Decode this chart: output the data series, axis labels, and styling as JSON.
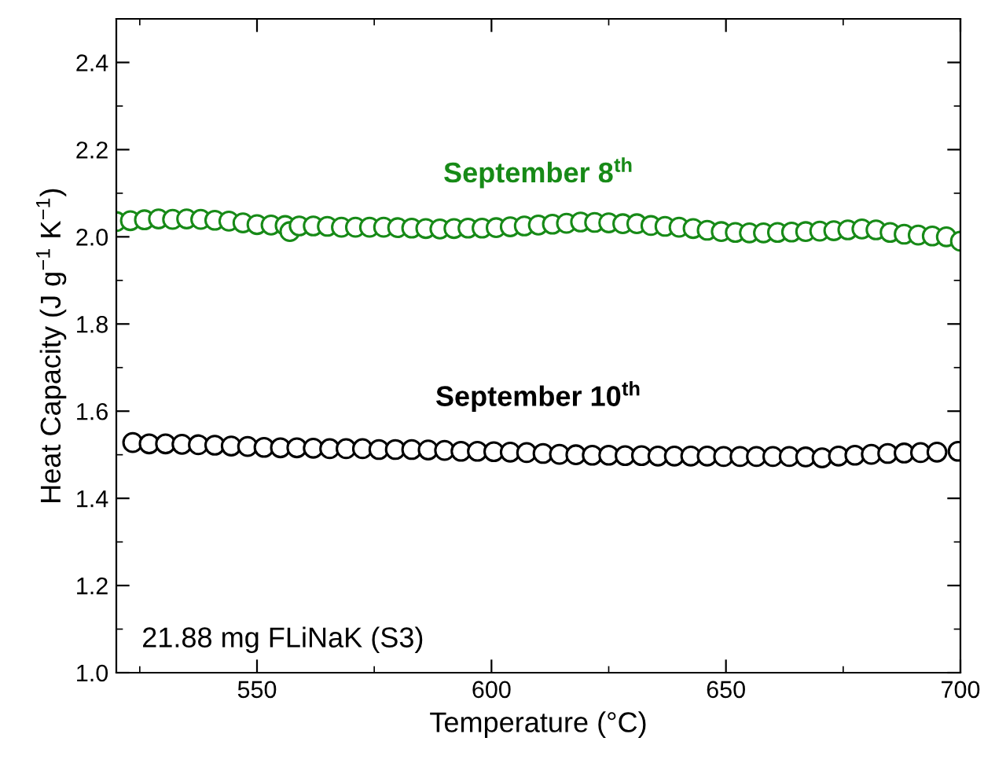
{
  "chart_data": {
    "type": "scatter",
    "xlabel": "Temperature (°C)",
    "ylabel": "Heat Capacity (J g$^{−1}$ K$^{−1}$)",
    "xlim": [
      520,
      700
    ],
    "xticks": [
      550,
      600,
      650,
      700
    ],
    "ylim": [
      1.0,
      2.5
    ],
    "yticks": [
      {
        "value": 1,
        "label": "1.0"
      },
      1.2,
      1.4,
      1.6,
      1.8,
      {
        "value": 2,
        "label": "2.0"
      },
      2.2,
      2.4
    ],
    "marker": "circle",
    "grid": false,
    "legend": false,
    "annotations": [
      "21.88 mg FLiNaK (S3)"
    ],
    "series": [
      {
        "name": "September 8$^{th}$",
        "color": "#178a17",
        "x": [
          520,
          523,
          526,
          529,
          532,
          535,
          538,
          541,
          544,
          547,
          550,
          553,
          556,
          557,
          559,
          562,
          565,
          568,
          571,
          574,
          577,
          580,
          583,
          586,
          589,
          592,
          595,
          598,
          601,
          604,
          607,
          610,
          613,
          616,
          619,
          622,
          625,
          628,
          631,
          634,
          637,
          640,
          643,
          646,
          649,
          652,
          655,
          658,
          661,
          664,
          667,
          670,
          673,
          676,
          679,
          682,
          685,
          688,
          691,
          694,
          697,
          700
        ],
        "values": [
          2.035,
          2.037,
          2.039,
          2.041,
          2.04,
          2.041,
          2.04,
          2.038,
          2.036,
          2.032,
          2.028,
          2.027,
          2.026,
          2.012,
          2.025,
          2.025,
          2.024,
          2.022,
          2.022,
          2.022,
          2.022,
          2.021,
          2.02,
          2.019,
          2.018,
          2.019,
          2.02,
          2.02,
          2.021,
          2.023,
          2.025,
          2.027,
          2.029,
          2.031,
          2.034,
          2.033,
          2.032,
          2.03,
          2.03,
          2.026,
          2.024,
          2.022,
          2.019,
          2.015,
          2.012,
          2.01,
          2.009,
          2.009,
          2.01,
          2.011,
          2.012,
          2.013,
          2.014,
          2.016,
          2.018,
          2.016,
          2.01,
          2.006,
          2.004,
          2.002,
          2.0,
          1.99
        ]
      },
      {
        "name": "September 10$^{th}$",
        "color": "#000000",
        "x": [
          523.5,
          527,
          530.5,
          534,
          537.5,
          541,
          544.5,
          548,
          551.5,
          555,
          558.5,
          562,
          565.5,
          569,
          572.5,
          576,
          579.5,
          583,
          586.5,
          590,
          593.5,
          597,
          600.5,
          604,
          607.5,
          611,
          614.5,
          618,
          621.5,
          625,
          628.5,
          632,
          635.5,
          639,
          642.5,
          646,
          649.5,
          653,
          656.5,
          660,
          663.5,
          667,
          670.5,
          674,
          677.5,
          681,
          684.5,
          688,
          691.5,
          695,
          699.5
        ],
        "values": [
          1.528,
          1.525,
          1.525,
          1.524,
          1.523,
          1.522,
          1.52,
          1.519,
          1.517,
          1.516,
          1.516,
          1.515,
          1.514,
          1.514,
          1.514,
          1.512,
          1.512,
          1.512,
          1.511,
          1.51,
          1.508,
          1.508,
          1.507,
          1.506,
          1.505,
          1.503,
          1.501,
          1.5,
          1.499,
          1.499,
          1.498,
          1.498,
          1.497,
          1.497,
          1.497,
          1.497,
          1.496,
          1.496,
          1.496,
          1.496,
          1.496,
          1.495,
          1.493,
          1.497,
          1.499,
          1.501,
          1.503,
          1.504,
          1.505,
          1.506,
          1.508
        ]
      }
    ]
  }
}
